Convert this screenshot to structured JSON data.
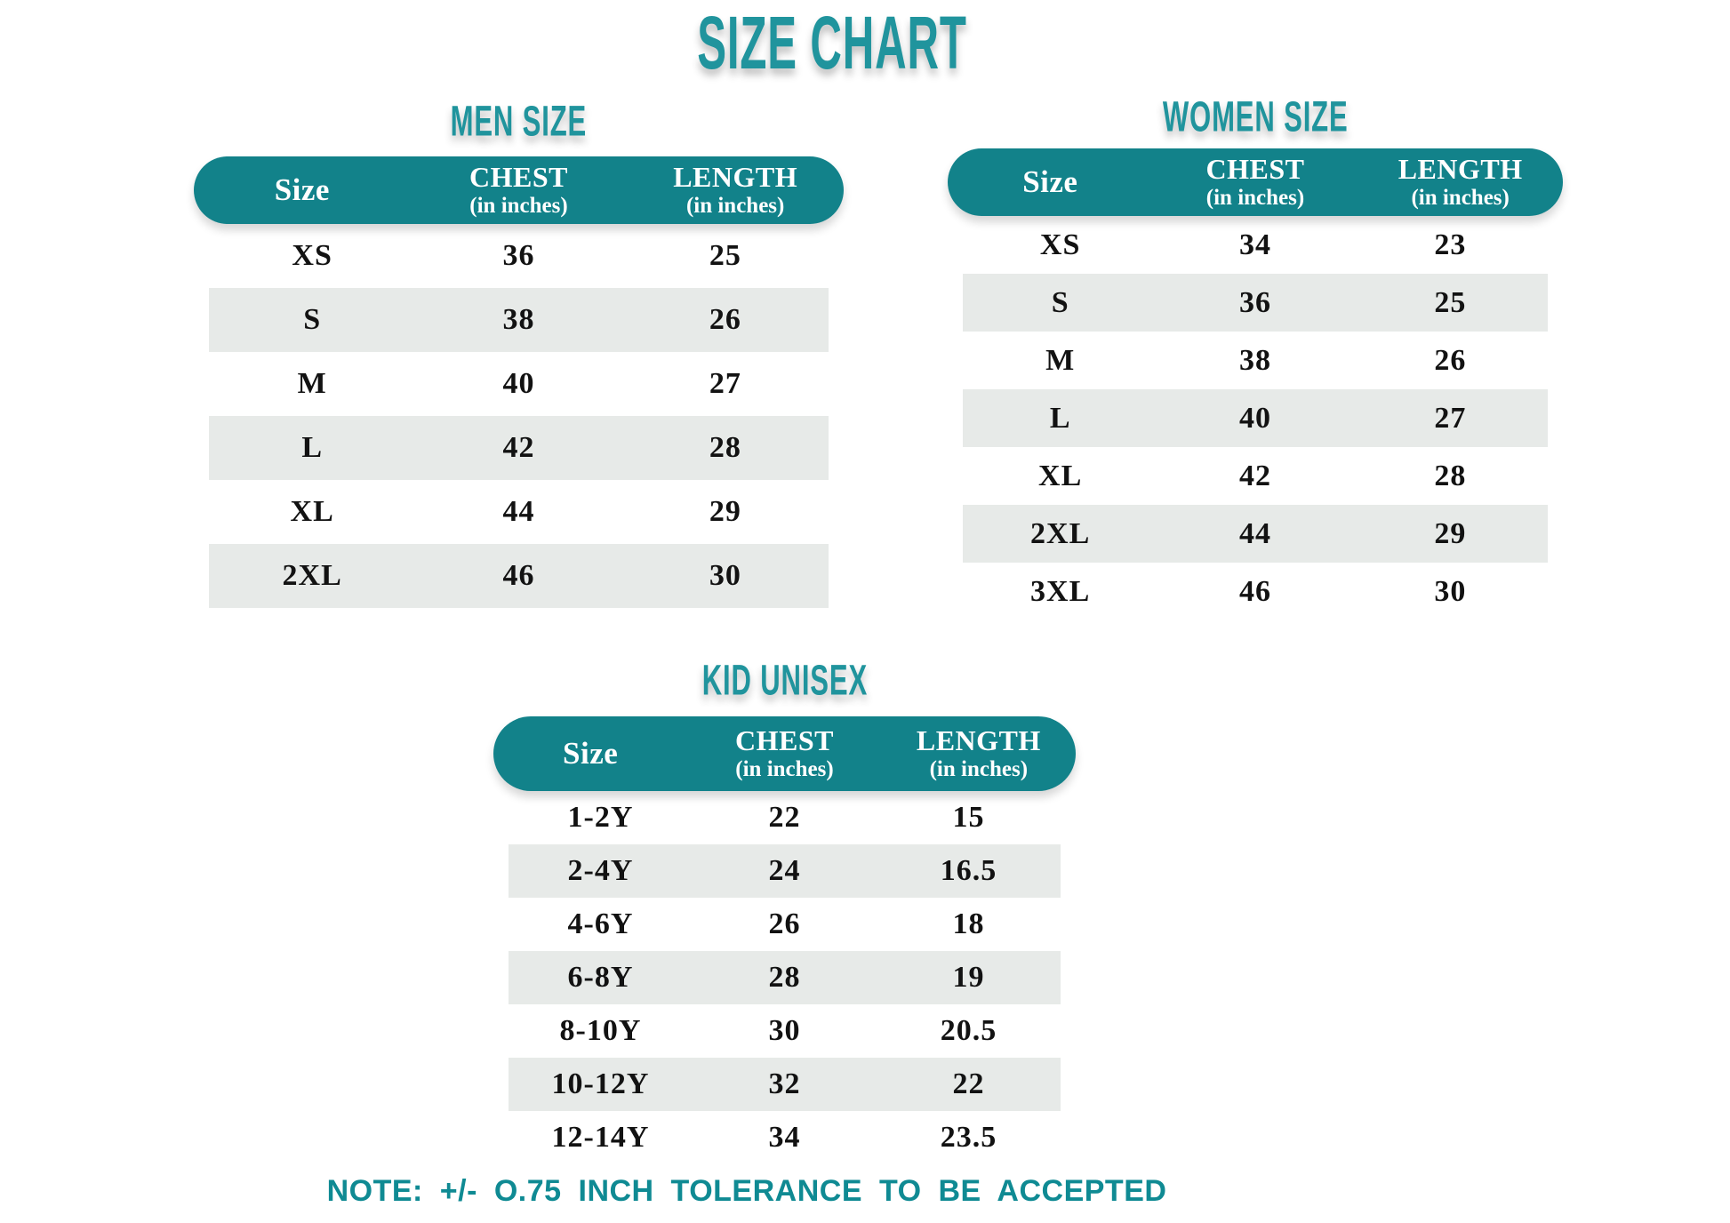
{
  "title": "SIZE CHART",
  "note": "NOTE: +/- O.75 INCH TOLERANCE TO BE ACCEPTED",
  "colors": {
    "teal_header": "#12828a",
    "teal_title": "#20949d",
    "teal_note": "#0f8a93",
    "stripe": "#e7eae8",
    "row_text": "#121212",
    "header_text": "#ffffff"
  },
  "chart_data": [
    {
      "type": "table",
      "title": "MEN SIZE",
      "columns": {
        "c1": "Size",
        "c2": "CHEST",
        "c2_unit": "(in inches)",
        "c3": "LENGTH",
        "c3_unit": "(in inches)"
      },
      "rows": [
        [
          "XS",
          "36",
          "25"
        ],
        [
          "S",
          "38",
          "26"
        ],
        [
          "M",
          "40",
          "27"
        ],
        [
          "L",
          "42",
          "28"
        ],
        [
          "XL",
          "44",
          "29"
        ],
        [
          "2XL",
          "46",
          "30"
        ]
      ]
    },
    {
      "type": "table",
      "title": "WOMEN SIZE",
      "columns": {
        "c1": "Size",
        "c2": "CHEST",
        "c2_unit": "(in inches)",
        "c3": "LENGTH",
        "c3_unit": "(in inches)"
      },
      "rows": [
        [
          "XS",
          "34",
          "23"
        ],
        [
          "S",
          "36",
          "25"
        ],
        [
          "M",
          "38",
          "26"
        ],
        [
          "L",
          "40",
          "27"
        ],
        [
          "XL",
          "42",
          "28"
        ],
        [
          "2XL",
          "44",
          "29"
        ],
        [
          "3XL",
          "46",
          "30"
        ]
      ]
    },
    {
      "type": "table",
      "title": "KID UNISEX",
      "columns": {
        "c1": "Size",
        "c2": "CHEST",
        "c2_unit": "(in inches)",
        "c3": "LENGTH",
        "c3_unit": "(in inches)"
      },
      "rows": [
        [
          "1-2Y",
          "22",
          "15"
        ],
        [
          "2-4Y",
          "24",
          "16.5"
        ],
        [
          "4-6Y",
          "26",
          "18"
        ],
        [
          "6-8Y",
          "28",
          "19"
        ],
        [
          "8-10Y",
          "30",
          "20.5"
        ],
        [
          "10-12Y",
          "32",
          "22"
        ],
        [
          "12-14Y",
          "34",
          "23.5"
        ]
      ]
    }
  ]
}
